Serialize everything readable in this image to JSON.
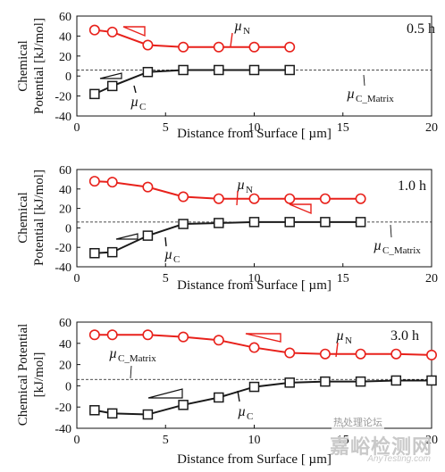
{
  "figure": {
    "ylabel_single": "Chemical Potential [kJ/mol]",
    "ylabel_top": "Chemical",
    "ylabel_bottom": "Potential [kJ/mol]"
  },
  "chart_data": [
    {
      "type": "line",
      "label": "0.5 h",
      "xlabel": "Distance from Surface [ µm]",
      "xlim": [
        0,
        20
      ],
      "ylim": [
        -40,
        60
      ],
      "xticks": [
        0,
        5,
        10,
        15,
        20
      ],
      "yticks": [
        -40,
        -20,
        0,
        20,
        40,
        60
      ],
      "matrix_line": 6,
      "series": [
        {
          "name": "µN",
          "color": "#e8211b",
          "marker": "circle",
          "x": [
            1,
            2,
            4,
            6,
            8,
            10,
            12
          ],
          "y": [
            46,
            44,
            31,
            29,
            29,
            29,
            29
          ]
        },
        {
          "name": "µC",
          "color": "#1a1a1a",
          "marker": "square",
          "x": [
            1,
            2,
            4,
            6,
            8,
            10,
            12
          ],
          "y": [
            -18,
            -10,
            4,
            6,
            6,
            6,
            6
          ]
        }
      ],
      "annotations": {
        "mu_N": "µ",
        "mu_N_sub": "N",
        "mu_C": "µ",
        "mu_C_sub": "C",
        "matrix": "µ",
        "matrix_sub": "C_Matrix"
      }
    },
    {
      "type": "line",
      "label": "1.0 h",
      "xlabel": "Distance from Surface [ µm]",
      "xlim": [
        0,
        20
      ],
      "ylim": [
        -40,
        60
      ],
      "xticks": [
        0,
        5,
        10,
        15,
        20
      ],
      "yticks": [
        -40,
        -20,
        0,
        20,
        40,
        60
      ],
      "matrix_line": 6,
      "series": [
        {
          "name": "µN",
          "color": "#e8211b",
          "marker": "circle",
          "x": [
            1,
            2,
            4,
            6,
            8,
            10,
            12,
            14,
            16
          ],
          "y": [
            48,
            47,
            42,
            32,
            30,
            30,
            30,
            30,
            30
          ]
        },
        {
          "name": "µC",
          "color": "#1a1a1a",
          "marker": "square",
          "x": [
            1,
            2,
            4,
            6,
            8,
            10,
            12,
            14,
            16
          ],
          "y": [
            -26,
            -25,
            -8,
            4,
            5,
            6,
            6,
            6,
            6
          ]
        }
      ],
      "annotations": {
        "mu_N": "µ",
        "mu_N_sub": "N",
        "mu_C": "µ",
        "mu_C_sub": "C",
        "matrix": "µ",
        "matrix_sub": "C_Matrix"
      }
    },
    {
      "type": "line",
      "label": "3.0 h",
      "xlabel": "Distance from Surface [ µm]",
      "xlim": [
        0,
        20
      ],
      "ylim": [
        -40,
        60
      ],
      "xticks": [
        0,
        5,
        10,
        15,
        20
      ],
      "yticks": [
        -40,
        -20,
        0,
        20,
        40,
        60
      ],
      "matrix_line": 6,
      "series": [
        {
          "name": "µN",
          "color": "#e8211b",
          "marker": "circle",
          "x": [
            1,
            2,
            4,
            6,
            8,
            10,
            12,
            14,
            16,
            18,
            20
          ],
          "y": [
            48,
            48,
            48,
            46,
            43,
            36,
            31,
            30,
            30,
            30,
            29
          ]
        },
        {
          "name": "µC",
          "color": "#1a1a1a",
          "marker": "square",
          "x": [
            1,
            2,
            4,
            6,
            8,
            10,
            12,
            14,
            16,
            18,
            20
          ],
          "y": [
            -23,
            -26,
            -27,
            -18,
            -11,
            -1,
            3,
            4,
            4,
            5,
            5
          ]
        }
      ],
      "annotations": {
        "mu_N": "µ",
        "mu_N_sub": "N",
        "mu_C": "µ",
        "mu_C_sub": "C",
        "matrix": "µ",
        "matrix_sub": "C_Matrix"
      }
    }
  ],
  "watermark": {
    "cn": "嘉峪检测网",
    "en": "AnyTesting.com",
    "badge": "热处理论坛"
  }
}
